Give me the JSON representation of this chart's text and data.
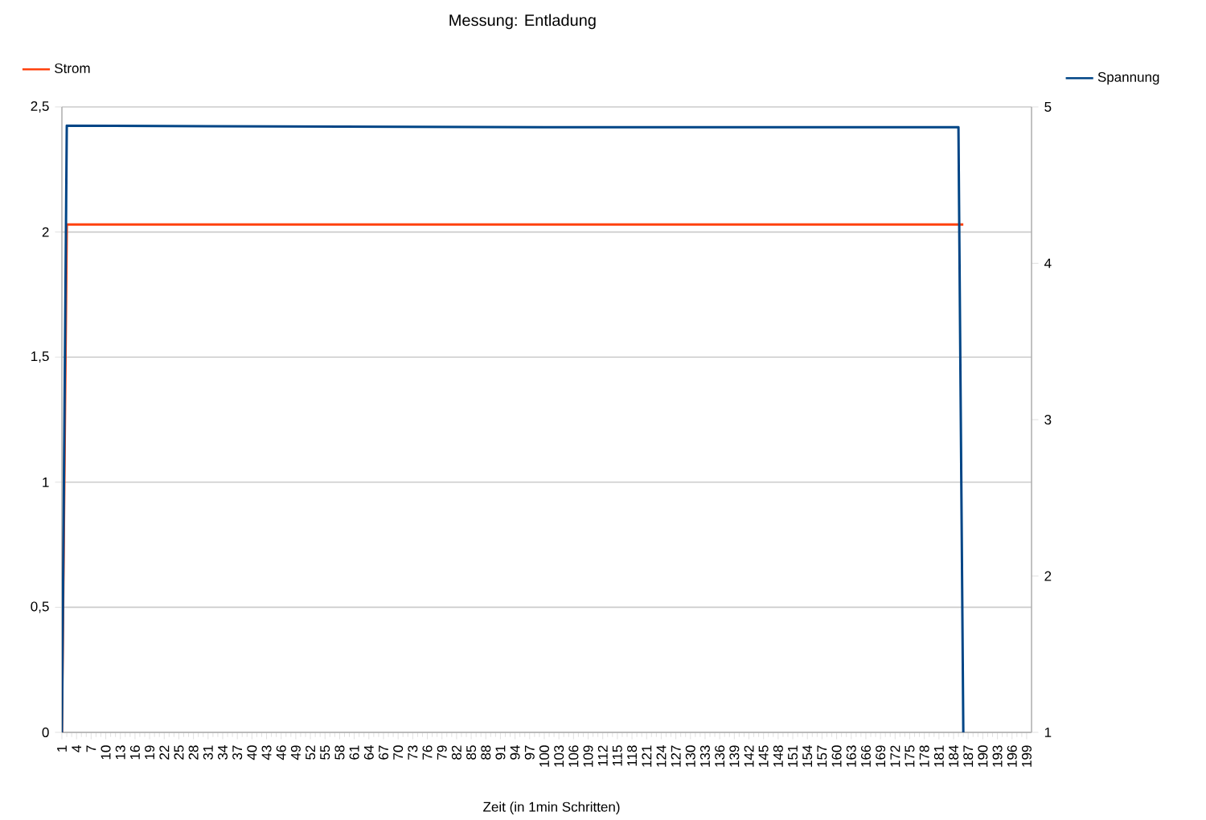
{
  "chart_data": {
    "type": "line",
    "title": "Messung: Entladung",
    "xlabel": "Zeit (in 1min Schritten)",
    "xlim": [
      1,
      200
    ],
    "xticks": [
      1,
      4,
      7,
      10,
      13,
      16,
      19,
      22,
      25,
      28,
      31,
      34,
      37,
      40,
      43,
      46,
      49,
      52,
      55,
      58,
      61,
      64,
      67,
      70,
      73,
      76,
      79,
      82,
      85,
      88,
      91,
      94,
      97,
      100,
      103,
      106,
      109,
      112,
      115,
      118,
      121,
      124,
      127,
      130,
      133,
      136,
      139,
      142,
      145,
      148,
      151,
      154,
      157,
      160,
      163,
      166,
      169,
      172,
      175,
      178,
      181,
      184,
      187,
      190,
      193,
      196,
      199
    ],
    "ylim": [
      0,
      2.5
    ],
    "yticks": [
      0,
      {
        "value": 0.5,
        "label": "0,5"
      },
      1,
      {
        "value": 1.5,
        "label": "1,5"
      },
      2,
      {
        "value": 2.5,
        "label": "2,5"
      }
    ],
    "y2lim": [
      1,
      5
    ],
    "y2ticks": [
      1,
      2,
      3,
      4,
      5
    ],
    "grid": "y",
    "legend": "top",
    "series": [
      {
        "name": "Strom",
        "color": "#ff420e",
        "x": [
          1,
          2,
          100,
          186
        ],
        "values": [
          0,
          2.03,
          2.03,
          2.03
        ]
      },
      {
        "name": "Spannung",
        "color": "#004586",
        "axis": "y2",
        "x": [
          1,
          2,
          100,
          185,
          186
        ],
        "values": [
          1,
          4.88,
          4.87,
          4.87,
          1
        ]
      }
    ]
  }
}
